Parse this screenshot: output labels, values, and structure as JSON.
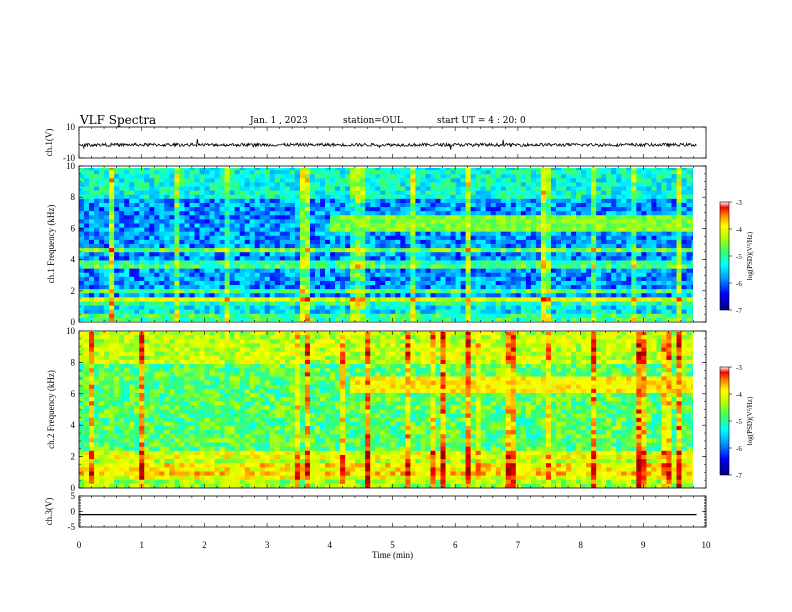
{
  "header": {
    "title": "VLF Spectra",
    "date": "Jan. 1 , 2023",
    "station": "station=OUL",
    "start": "start UT = 4 : 20: 0"
  },
  "colors": {
    "background": "#ffffff",
    "axis": "#000000",
    "colormap": [
      "#000080",
      "#0000ff",
      "#00a0ff",
      "#00ffff",
      "#40ff60",
      "#c0ff00",
      "#ffff00",
      "#ff8000",
      "#ff0000",
      "#a00000"
    ]
  },
  "chart_data": [
    {
      "type": "line",
      "panel": "ch1-waveform",
      "ylabel": "ch.1(V)",
      "ylim": [
        -10,
        10
      ],
      "yticks": [
        "10",
        "-10"
      ],
      "xlim": [
        0,
        10
      ],
      "trace_level_V": -1.5,
      "trace_noise_V": 1.0
    },
    {
      "type": "heatmap",
      "panel": "ch1-spectrogram",
      "ylabel": "ch.1 Frequency (kHz)",
      "ylim": [
        0,
        10
      ],
      "yticks": [
        "0",
        "2",
        "4",
        "6",
        "8",
        "10"
      ],
      "xlim": [
        0,
        9.85
      ],
      "colorbar": {
        "label": "log(PSD)(V²/Hz)",
        "range": [
          -7,
          -3
        ],
        "ticks": [
          "-3",
          "-4",
          "-5",
          "-6",
          "-7"
        ]
      },
      "features": [
        {
          "name": "band",
          "start_min": 4.0,
          "end_min": 9.85,
          "f_low_kHz": 5.8,
          "f_high_kHz": 6.8,
          "level": -5.0
        }
      ]
    },
    {
      "type": "heatmap",
      "panel": "ch2-spectrogram",
      "ylabel": "ch.2 Frequency (kHz)",
      "ylim": [
        0,
        10
      ],
      "yticks": [
        "0",
        "2",
        "4",
        "6",
        "8",
        "10"
      ],
      "xlim": [
        0,
        9.85
      ],
      "colorbar": {
        "label": "log(PSD)(V²/Hz)",
        "range": [
          -7,
          -3
        ],
        "ticks": [
          "-3",
          "-4",
          "-5",
          "-6",
          "-7"
        ]
      },
      "features": [
        {
          "name": "band",
          "start_min": 4.3,
          "end_min": 9.85,
          "f_low_kHz": 6.0,
          "f_high_kHz": 7.0,
          "level": -4.3
        }
      ]
    },
    {
      "type": "line",
      "panel": "ch3-waveform",
      "ylabel": "ch.3(V)",
      "ylim": [
        -5,
        5
      ],
      "yticks": [
        "5",
        "0",
        "-5"
      ],
      "xlim": [
        0,
        10
      ],
      "trace_level_V": -1.0
    }
  ],
  "xaxis": {
    "label": "Time (min)",
    "range": [
      0,
      10
    ],
    "ticks": [
      "0",
      "1",
      "2",
      "3",
      "4",
      "5",
      "6",
      "7",
      "8",
      "9",
      "10"
    ]
  }
}
